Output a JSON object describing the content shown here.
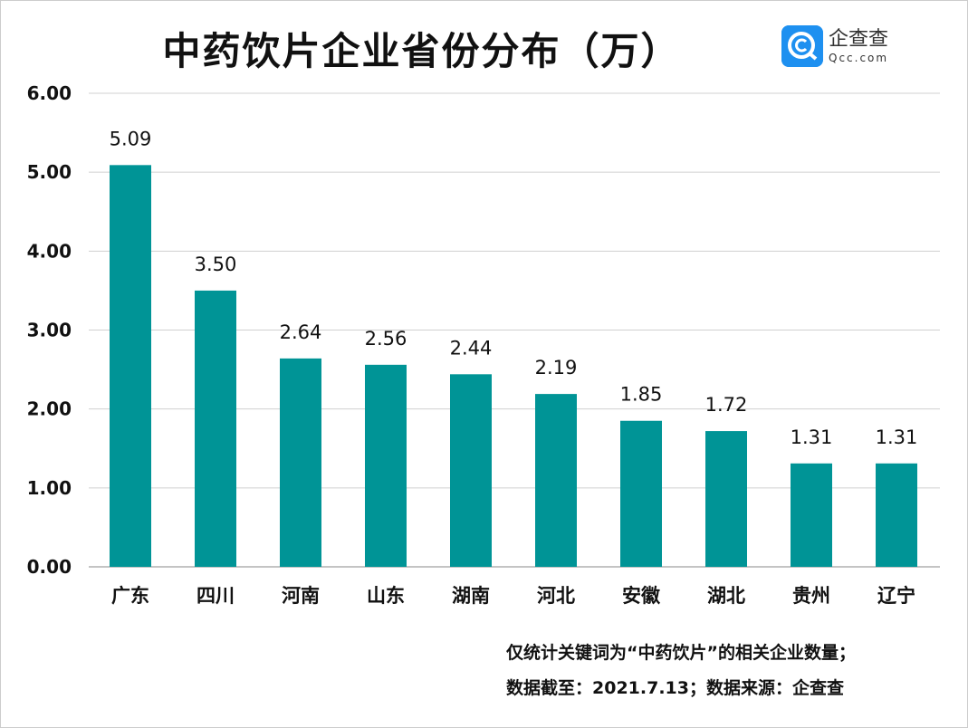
{
  "chart_data": {
    "type": "bar",
    "title": "中药饮片企业省份分布（万）",
    "categories": [
      "广东",
      "四川",
      "河南",
      "山东",
      "湖南",
      "河北",
      "安徽",
      "湖北",
      "贵州",
      "辽宁"
    ],
    "values": [
      5.09,
      3.5,
      2.64,
      2.56,
      2.44,
      2.19,
      1.85,
      1.72,
      1.31,
      1.31
    ],
    "data_labels": [
      "5.09",
      "3.50",
      "2.64",
      "2.56",
      "2.44",
      "2.19",
      "1.85",
      "1.72",
      "1.31",
      "1.31"
    ],
    "ylim": [
      0,
      6
    ],
    "yticks": [
      "0.00",
      "1.00",
      "2.00",
      "3.00",
      "4.00",
      "5.00",
      "6.00"
    ],
    "xlabel": "",
    "ylabel": "",
    "grid": true,
    "bar_color": "#009496"
  },
  "logo": {
    "cn": "企查查",
    "en": "Qcc.com",
    "color": "#1e90f0"
  },
  "footnotes": [
    "仅统计关键词为“中药饮片”的相关企业数量；",
    "数据截至：2021.7.13；数据来源：企查查"
  ]
}
